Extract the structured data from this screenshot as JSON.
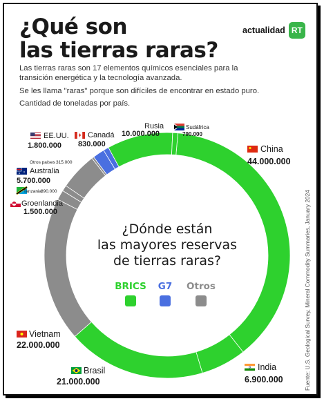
{
  "title": "¿Qué son\nlas tierras raras?",
  "brand": {
    "name": "actualidad",
    "logo": "RT"
  },
  "intro": [
    "Las tierras raras son 17 elementos químicos esenciales para la transición energética y la tecnología avanzada.",
    "Se les llama \"raras\" porque son difíciles de encontrar en estado puro.",
    "Cantidad de toneladas por país."
  ],
  "center_question": [
    "¿Dónde están",
    "las mayores reservas",
    "de tierras raras?"
  ],
  "legend": [
    {
      "label": "BRICS",
      "color": "#2ed12e"
    },
    {
      "label": "G7",
      "color": "#4a6fe0"
    },
    {
      "label": "Otros",
      "color": "#8c8c8c"
    }
  ],
  "source": "Fuente: U.S. Geological Survey, Mineral Commodity Summaries, January 2024",
  "colors": {
    "brics": "#2ed12e",
    "g7": "#4a6fe0",
    "otros": "#8c8c8c"
  },
  "chart_data": {
    "type": "pie",
    "unit": "toneladas",
    "slices": [
      {
        "country": "China",
        "value": 44000000,
        "value_label": "44.000.000",
        "group": "BRICS",
        "flag": "china"
      },
      {
        "country": "India",
        "value": 6900000,
        "value_label": "6.900.000",
        "group": "BRICS",
        "flag": "india"
      },
      {
        "country": "Brasil",
        "value": 21000000,
        "value_label": "21.000.000",
        "group": "BRICS",
        "flag": "brazil"
      },
      {
        "country": "Vietnam",
        "value": 22000000,
        "value_label": "22.000.000",
        "group": "Otros",
        "flag": "vietnam"
      },
      {
        "country": "Groenlandia",
        "value": 1500000,
        "value_label": "1.500.000",
        "group": "Otros",
        "flag": "greenland"
      },
      {
        "country": "Tanzania",
        "value": 890000,
        "value_label": "890.000",
        "group": "Otros",
        "flag": "tanzania"
      },
      {
        "country": "Australia",
        "value": 5700000,
        "value_label": "5.700.000",
        "group": "Otros",
        "flag": "australia"
      },
      {
        "country": "Otros países",
        "value": 315000,
        "value_label": "315.000",
        "group": "Otros",
        "flag": ""
      },
      {
        "country": "EE.UU.",
        "value": 1800000,
        "value_label": "1.800.000",
        "group": "G7",
        "flag": "usa"
      },
      {
        "country": "Canadá",
        "value": 830000,
        "value_label": "830.000",
        "group": "G7",
        "flag": "canada"
      },
      {
        "country": "Rusia",
        "value": 10000000,
        "value_label": "10.000.000",
        "group": "BRICS",
        "flag": "russia"
      },
      {
        "country": "Sudáfrica",
        "value": 790000,
        "value_label": "790.000",
        "group": "BRICS",
        "flag": "south-africa"
      }
    ]
  }
}
